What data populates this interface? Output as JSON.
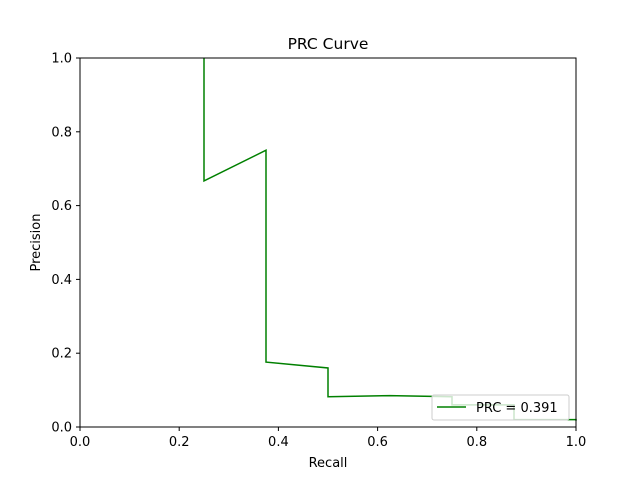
{
  "chart_data": {
    "type": "line",
    "title": "PRC Curve",
    "xlabel": "Recall",
    "ylabel": "Precision",
    "xlim": [
      0.0,
      1.0
    ],
    "ylim": [
      0.0,
      1.0
    ],
    "xticks": [
      "0.0",
      "0.2",
      "0.4",
      "0.6",
      "0.8",
      "1.0"
    ],
    "yticks": [
      "0.0",
      "0.2",
      "0.4",
      "0.6",
      "0.8",
      "1.0"
    ],
    "grid": false,
    "legend_position": "lower right",
    "series": [
      {
        "name": "PRC = 0.391",
        "color": "#008000",
        "x": [
          0.25,
          0.25,
          0.375,
          0.375,
          0.5,
          0.5,
          0.625,
          0.75,
          0.75,
          0.875,
          0.875,
          1.0,
          1.0
        ],
        "y": [
          1.0,
          0.667,
          0.75,
          0.176,
          0.16,
          0.082,
          0.085,
          0.082,
          0.06,
          0.06,
          0.02,
          0.02,
          0.017
        ]
      }
    ]
  }
}
